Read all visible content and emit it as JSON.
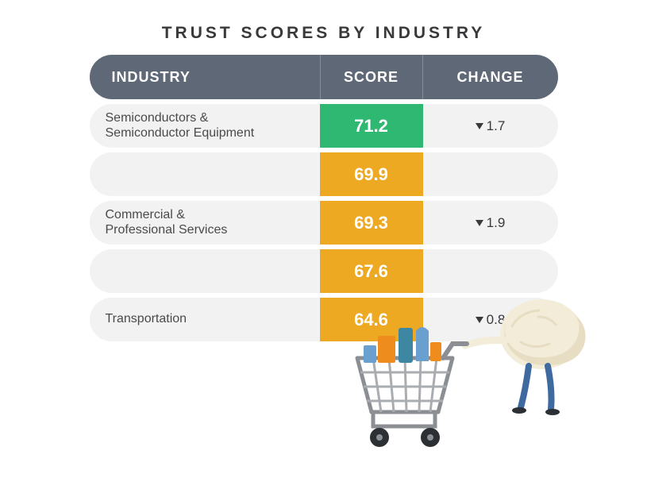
{
  "title": "TRUST SCORES BY INDUSTRY",
  "title_fontsize": 21,
  "title_color": "#39393b",
  "header": {
    "bg": "#5e6876",
    "fg": "#ffffff",
    "fontsize": 18,
    "industry": "INDUSTRY",
    "score": "SCORE",
    "change": "CHANGE"
  },
  "row_bg": "#f2f2f3",
  "row_text_color": "#4a4a4c",
  "change_text_color": "#3a3a3c",
  "rows": [
    {
      "industry": "Semiconductors &\nSemiconductor Equipment",
      "score": "71.2",
      "score_bg": "#2eb872",
      "change": "1.7",
      "change_dir": "down"
    },
    {
      "industry": "",
      "score": "69.9",
      "score_bg": "#eca921",
      "change": "",
      "change_dir": ""
    },
    {
      "industry": "Commercial &\nProfessional Services",
      "score": "69.3",
      "score_bg": "#eca921",
      "change": "1.9",
      "change_dir": "down"
    },
    {
      "industry": "",
      "score": "67.6",
      "score_bg": "#eca921",
      "change": "",
      "change_dir": ""
    },
    {
      "industry": "Transportation",
      "score": "64.6",
      "score_bg": "#eca921",
      "change": "0.8",
      "change_dir": "down"
    }
  ],
  "illustration": {
    "name": "brain-character-pushing-shopping-cart",
    "cart_frame": "#8b8f94",
    "cart_bars": "#a9adb1",
    "wheel": "#2c2f33",
    "brain_body": "#f3ecd9",
    "brain_shadow": "#e7ddc3",
    "legs": "#3e6aa0",
    "item_orange": "#ee8c1e",
    "item_blue": "#6aa0d0",
    "item_teal": "#3e87a2"
  }
}
